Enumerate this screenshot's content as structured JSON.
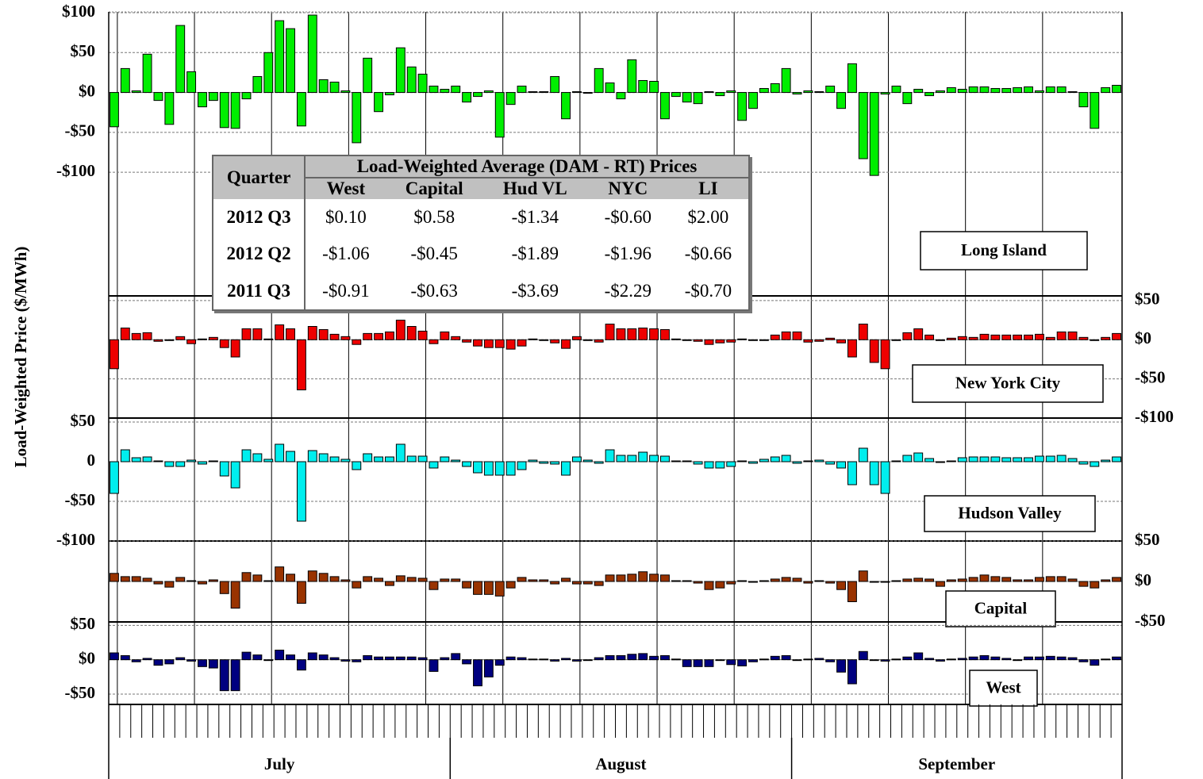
{
  "y_label": "Load-Weighted Price ($/MWh)",
  "months": [
    "July",
    "August",
    "September"
  ],
  "table": {
    "corner": "Quarter",
    "title": "Load-Weighted Average (DAM - RT) Prices",
    "columns": [
      "West",
      "Capital",
      "Hud VL",
      "NYC",
      "LI"
    ],
    "rows": [
      [
        "2012 Q3",
        "$0.10",
        "$0.58",
        "-$1.34",
        "-$0.60",
        "$2.00"
      ],
      [
        "2012 Q2",
        "-$1.06",
        "-$0.45",
        "-$1.89",
        "-$1.96",
        "-$0.66"
      ],
      [
        "2011 Q3",
        "-$0.91",
        "-$0.63",
        "-$3.69",
        "-$2.29",
        "-$0.70"
      ]
    ]
  },
  "chart_data": [
    {
      "type": "bar",
      "name": "Long Island",
      "color": "#00ee00",
      "tick_side": "left",
      "grid": true,
      "ylim": [
        -255,
        101
      ],
      "yticks": [
        {
          "value": 100,
          "label": "$100"
        },
        {
          "value": 50,
          "label": "$50"
        },
        {
          "value": 0,
          "label": "$0"
        },
        {
          "value": -50,
          "label": "-$50"
        },
        {
          "value": -100,
          "label": "-$100"
        }
      ],
      "values": [
        -43,
        30,
        2,
        48,
        -10,
        -40,
        84,
        26,
        -18,
        -10,
        -44,
        -45,
        -8,
        20,
        50,
        90,
        80,
        -42,
        97,
        16,
        13,
        2,
        -63,
        43,
        -24,
        -3,
        56,
        32,
        23,
        8,
        4,
        8,
        -12,
        -5,
        2,
        -56,
        -15,
        8,
        1,
        1,
        20,
        -33,
        1,
        0,
        30,
        12,
        -8,
        41,
        15,
        14,
        -33,
        -5,
        -12,
        -14,
        1,
        -4,
        2,
        -35,
        -20,
        5,
        11,
        30,
        -2,
        2,
        1,
        8,
        -20,
        36,
        -83,
        -104,
        -2,
        8,
        -14,
        4,
        -4,
        2,
        6,
        4,
        7,
        7,
        5,
        5,
        6,
        7,
        2,
        7,
        7,
        1,
        -18,
        -45,
        6,
        9
      ]
    },
    {
      "type": "bar",
      "name": "New York City",
      "color": "#ee0000",
      "tick_side": "right",
      "grid": true,
      "ylim": [
        -100,
        56
      ],
      "yticks": [
        {
          "value": 50,
          "label": "$50"
        },
        {
          "value": 0,
          "label": "$0"
        },
        {
          "value": -50,
          "label": "-$50"
        },
        {
          "value": -100,
          "label": "-$100"
        }
      ],
      "values": [
        -37,
        15,
        8,
        9,
        -2,
        -1,
        4,
        -5,
        1,
        3,
        -10,
        -22,
        14,
        14,
        1,
        19,
        14,
        -64,
        17,
        13,
        7,
        4,
        -6,
        8,
        8,
        10,
        25,
        17,
        11,
        -5,
        10,
        4,
        -3,
        -8,
        -10,
        -10,
        -12,
        -8,
        1,
        -1,
        -4,
        -11,
        4,
        -1,
        -3,
        20,
        14,
        14,
        15,
        14,
        13,
        1,
        0,
        -2,
        -6,
        -4,
        -3,
        1,
        -1,
        -1,
        6,
        10,
        10,
        -3,
        -2,
        2,
        -4,
        -22,
        20,
        -29,
        -37,
        -1,
        9,
        14,
        6,
        -1,
        2,
        4,
        3,
        7,
        6,
        6,
        6,
        6,
        7,
        3,
        10,
        10,
        3,
        -1,
        3,
        8
      ]
    },
    {
      "type": "bar",
      "name": "Hudson Valley",
      "color": "#00eeee",
      "tick_side": "left",
      "grid": true,
      "ylim": [
        -100,
        55
      ],
      "yticks": [
        {
          "value": 50,
          "label": "$50"
        },
        0,
        {
          "value": -50,
          "label": "-$50"
        },
        {
          "value": -100,
          "label": "-$100"
        }
      ],
      "values": [
        -40,
        15,
        5,
        6,
        1,
        -6,
        -6,
        2,
        -3,
        1,
        -18,
        -33,
        15,
        10,
        3,
        22,
        13,
        -75,
        14,
        10,
        6,
        3,
        -10,
        10,
        6,
        6,
        22,
        7,
        7,
        -8,
        6,
        2,
        -6,
        -14,
        -17,
        -17,
        -17,
        -10,
        2,
        -2,
        -3,
        -17,
        6,
        2,
        -2,
        15,
        8,
        8,
        12,
        8,
        7,
        1,
        1,
        -3,
        -8,
        -8,
        -6,
        1,
        -2,
        3,
        6,
        8,
        -2,
        1,
        2,
        -3,
        -8,
        -29,
        17,
        -29,
        -40,
        1,
        8,
        11,
        4,
        -1,
        1,
        5,
        6,
        6,
        6,
        5,
        5,
        5,
        7,
        7,
        8,
        4,
        -3,
        -6,
        2,
        6
      ]
    },
    {
      "type": "bar",
      "name": "Capital",
      "color": "#993300",
      "tick_side": "right",
      "grid": true,
      "ylim": [
        -50,
        50
      ],
      "yticks": [
        {
          "value": 50,
          "label": "$50"
        },
        {
          "value": 0,
          "label": "$0"
        },
        {
          "value": -50,
          "label": "-$50"
        }
      ],
      "values": [
        10,
        6,
        6,
        4,
        -3,
        -7,
        5,
        1,
        -3,
        2,
        -15,
        -33,
        11,
        8,
        1,
        18,
        9,
        -27,
        13,
        10,
        6,
        2,
        -8,
        6,
        4,
        -5,
        7,
        5,
        4,
        -10,
        3,
        3,
        -8,
        -16,
        -16,
        -18,
        -8,
        5,
        2,
        2,
        -3,
        4,
        -3,
        -3,
        -5,
        8,
        8,
        9,
        12,
        9,
        8,
        1,
        1,
        -2,
        -10,
        -8,
        -3,
        1,
        -1,
        1,
        3,
        5,
        4,
        -2,
        1,
        -2,
        -10,
        -25,
        13,
        -1,
        -1,
        1,
        3,
        4,
        3,
        -6,
        2,
        3,
        5,
        8,
        6,
        5,
        2,
        2,
        5,
        6,
        6,
        3,
        -6,
        -8,
        2,
        5
      ]
    },
    {
      "type": "bar",
      "name": "West",
      "color": "#000080",
      "tick_side": "left",
      "grid": true,
      "ylim": [
        -65,
        55
      ],
      "yticks": [
        {
          "value": 50,
          "label": "$50"
        },
        {
          "value": 0,
          "label": "$0"
        },
        {
          "value": -50,
          "label": "-$50"
        }
      ],
      "values": [
        10,
        6,
        -3,
        2,
        -8,
        -6,
        3,
        -2,
        -10,
        -12,
        -45,
        -45,
        11,
        7,
        -1,
        14,
        7,
        -15,
        10,
        7,
        3,
        -2,
        -3,
        6,
        4,
        4,
        4,
        4,
        3,
        -17,
        3,
        9,
        -6,
        -38,
        -25,
        -8,
        4,
        3,
        1,
        1,
        -2,
        2,
        -2,
        -1,
        3,
        6,
        6,
        8,
        9,
        5,
        6,
        1,
        -10,
        -10,
        -10,
        0,
        -7,
        -9,
        -3,
        1,
        5,
        6,
        -1,
        1,
        2,
        -3,
        -18,
        -35,
        12,
        -1,
        -2,
        1,
        4,
        10,
        2,
        -2,
        1,
        2,
        4,
        6,
        4,
        2,
        -1,
        4,
        4,
        5,
        4,
        3,
        -3,
        -8,
        1,
        4
      ]
    }
  ]
}
